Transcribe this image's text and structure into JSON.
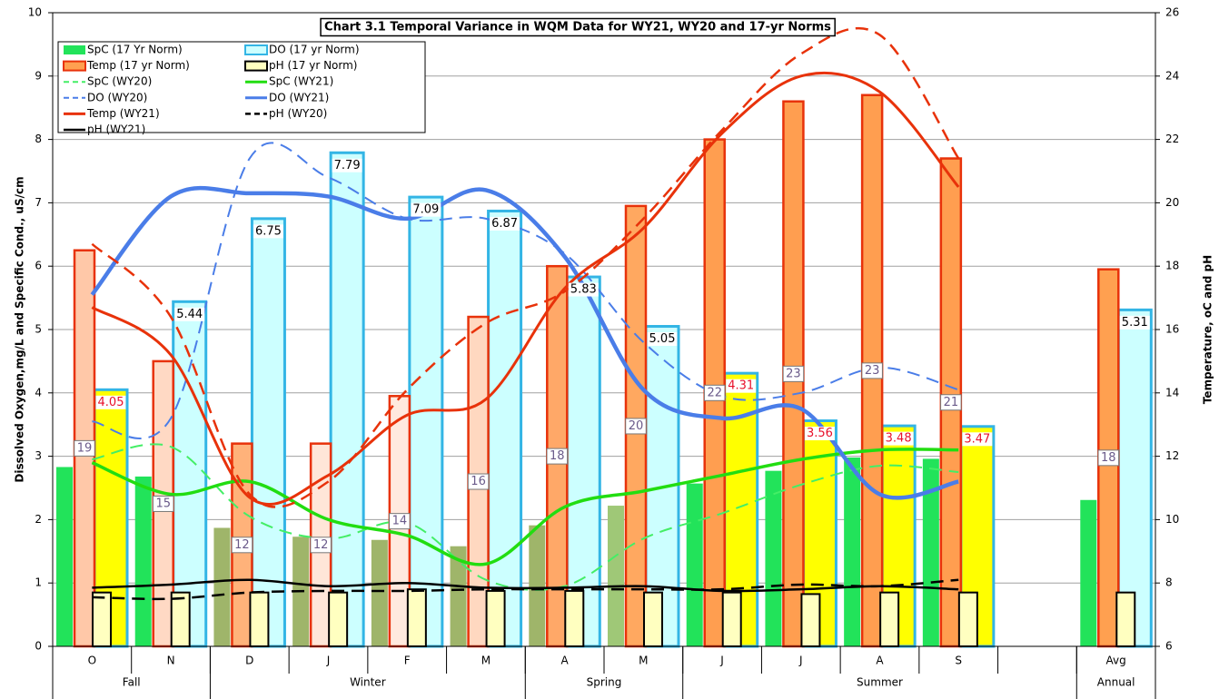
{
  "chart_data": {
    "type": "combo",
    "title": "Chart 3.1  Temporal Variance in WQM Data for WY21, WY20 and 17-yr Norms",
    "y_label": "Dissolved Oxygen,mg/L and Specific Cond., uS/cm",
    "y2_label": "Temperature, oC and pH",
    "categories": [
      "O",
      "N",
      "D",
      "J",
      "F",
      "M",
      "A",
      "M",
      "J",
      "J",
      "A",
      "S",
      null,
      "Avg"
    ],
    "groups": [
      {
        "label": "Fall",
        "count": 2
      },
      {
        "label": "Winter",
        "count": 4
      },
      {
        "label": "Spring",
        "count": 2
      },
      {
        "label": "Summer",
        "count": 5
      },
      {
        "label": "Annual",
        "count": 1
      }
    ],
    "ylim": [
      0,
      10
    ],
    "yticks": [
      0,
      1,
      2,
      3,
      4,
      5,
      6,
      7,
      8,
      9,
      10
    ],
    "y2lim": [
      6,
      26
    ],
    "y2ticks": [
      6,
      8,
      10,
      12,
      14,
      16,
      18,
      20,
      22,
      24,
      26
    ],
    "grid": true,
    "series": [
      {
        "name": "SpC (17 Yr Norm)",
        "kind": "bar",
        "slot": "spc",
        "color": "#22e35a",
        "colors": [
          "#22e35a",
          "#22e35a",
          "#9fb56a",
          "#9fb56a",
          "#9fb56a",
          "#9fb56a",
          "#9fb56a",
          "#9fc877",
          "#22e35a",
          "#22e35a",
          "#22e35a",
          "#22e35a",
          null,
          "#22e35a"
        ],
        "values": [
          2.83,
          2.68,
          1.87,
          1.73,
          1.68,
          1.58,
          1.91,
          2.22,
          2.57,
          2.77,
          2.98,
          2.96,
          null,
          2.31
        ]
      },
      {
        "name": "DO (17 yr Norm)",
        "kind": "bar",
        "slot": "do",
        "color": "#ccffff",
        "stroke": "#33b5e5",
        "colors": [
          "#ffff00",
          "#ccffff",
          "#ccffff",
          "#ccffff",
          "#ccffff",
          "#ccffff",
          "#ccffff",
          "#ccffff",
          "#ffff00",
          "#ffff00",
          "#ffff00",
          "#ffff00",
          null,
          "#ccffff"
        ],
        "label_colors": [
          "#e8102a",
          "#000000",
          "#000000",
          "#000000",
          "#000000",
          "#000000",
          "#000000",
          "#000000",
          "#e8102a",
          "#e8102a",
          "#e8102a",
          "#e8102a",
          null,
          "#000000"
        ],
        "values": [
          4.05,
          5.44,
          6.75,
          7.79,
          7.09,
          6.87,
          5.83,
          5.05,
          4.31,
          3.56,
          3.48,
          3.47,
          null,
          5.31
        ]
      },
      {
        "name": "Temp (17 yr Norm)",
        "kind": "bar",
        "slot": "temp",
        "axis": "y2",
        "color": "#ffa050",
        "stroke": "#e8320a",
        "colors": [
          "#ffc8a8",
          "#ffd9c4",
          "#ffb27a",
          "#ffe6d8",
          "#ffe9de",
          "#ffd8c0",
          "#ffa868",
          "#ffa860",
          "#ff9e50",
          "#ff9e50",
          "#ff9e50",
          "#ff9e50",
          null,
          "#ffa050"
        ],
        "values": [
          18.5,
          15.0,
          12.4,
          12.4,
          13.9,
          16.4,
          18.0,
          19.9,
          22.0,
          23.2,
          23.4,
          21.4,
          null,
          17.9
        ],
        "value_labels": [
          "19",
          "15",
          "12",
          "12",
          "14",
          "16",
          "18",
          "20",
          "22",
          "23",
          "23",
          "21",
          null,
          "18"
        ]
      },
      {
        "name": "pH (17 yr Norm)",
        "kind": "bar",
        "slot": "ph",
        "axis": "y2",
        "color": "#ffffc0",
        "stroke": "#000000",
        "values": [
          7.7,
          7.7,
          7.7,
          7.7,
          7.8,
          7.75,
          7.75,
          7.7,
          7.7,
          7.65,
          7.7,
          7.7,
          null,
          7.7
        ]
      },
      {
        "name": "SpC (WY20)",
        "kind": "line",
        "dash": true,
        "width": 2,
        "color": "#44ee66",
        "values": [
          2.95,
          3.15,
          2.05,
          1.7,
          1.95,
          1.05,
          0.95,
          1.7,
          2.1,
          2.55,
          2.85,
          2.75,
          null,
          null
        ]
      },
      {
        "name": "SpC (WY21)",
        "kind": "line",
        "width": 3.5,
        "color": "#22dd11",
        "values": [
          2.9,
          2.4,
          2.6,
          2.0,
          1.75,
          1.3,
          2.2,
          2.45,
          2.7,
          2.95,
          3.1,
          3.1,
          null,
          null
        ]
      },
      {
        "name": "DO (WY20)",
        "kind": "line",
        "dash": true,
        "width": 2,
        "color": "#4a7de8",
        "values": [
          3.55,
          3.6,
          7.7,
          7.4,
          6.75,
          6.75,
          6.2,
          4.8,
          3.95,
          4.0,
          4.4,
          4.05,
          null,
          null
        ]
      },
      {
        "name": "DO (WY21)",
        "kind": "line",
        "width": 4.5,
        "color": "#4a7de8",
        "values": [
          5.55,
          7.1,
          7.15,
          7.1,
          6.75,
          7.2,
          6.15,
          4.05,
          3.6,
          3.75,
          2.4,
          2.6,
          null,
          null
        ]
      },
      {
        "name": "Temp (WY21)",
        "kind": "line",
        "axis": "y2",
        "width": 3,
        "color": "#e8320a",
        "values": [
          16.7,
          15.2,
          10.7,
          11.4,
          13.3,
          13.8,
          17.3,
          19.2,
          22.2,
          24.0,
          23.5,
          20.5,
          null,
          null
        ]
      },
      {
        "name": "pH (WY20)",
        "kind": "line",
        "axis": "y2",
        "dash": true,
        "width": 2.5,
        "color": "#000000",
        "values": [
          7.55,
          7.5,
          7.7,
          7.75,
          7.75,
          7.8,
          7.8,
          7.8,
          7.8,
          7.95,
          7.9,
          8.1,
          null,
          null
        ]
      },
      {
        "name": "pH (WY21)",
        "kind": "line",
        "axis": "y2",
        "width": 2.5,
        "color": "#000000",
        "values": [
          7.85,
          7.95,
          8.1,
          7.9,
          8.0,
          7.85,
          7.85,
          7.9,
          7.75,
          7.8,
          7.9,
          7.8,
          null,
          null
        ]
      },
      {
        "kind": "line",
        "axis": "y2",
        "dash": true,
        "width": 2.5,
        "color": "#e8320a",
        "values": [
          18.7,
          16.4,
          10.8,
          11.2,
          14.1,
          16.2,
          17.2,
          19.5,
          22.3,
          24.7,
          25.3,
          21.4,
          null,
          null
        ]
      }
    ]
  }
}
